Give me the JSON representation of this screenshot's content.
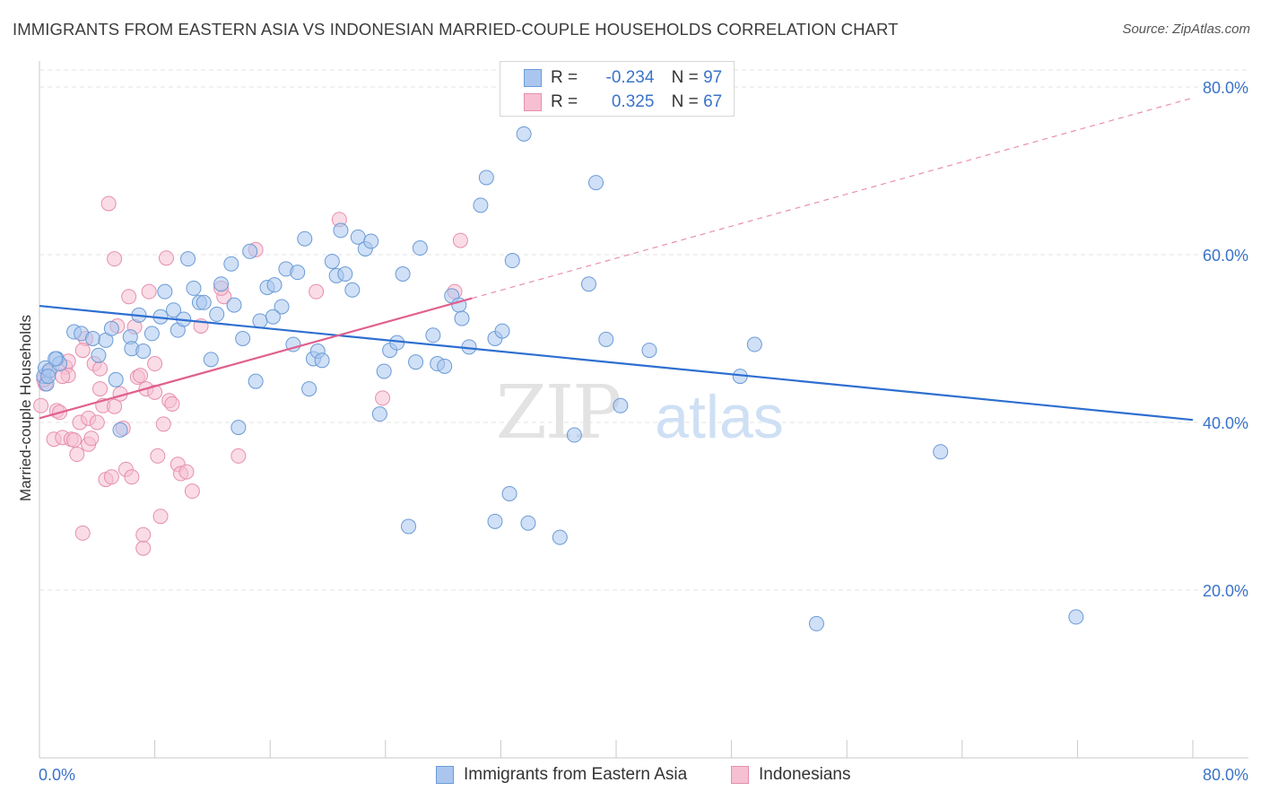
{
  "title": "IMMIGRANTS FROM EASTERN ASIA VS INDONESIAN MARRIED-COUPLE HOUSEHOLDS CORRELATION CHART",
  "source": "Source: ZipAtlas.com",
  "watermark": {
    "zip": "ZIP",
    "atlas": "atlas"
  },
  "colors": {
    "blue_fill": "#aac6ee",
    "blue_stroke": "#6b9bd6",
    "blue_line": "#2e6fd0",
    "pink_fill": "#f6c0d2",
    "pink_stroke": "#e68fae",
    "pink_line": "#e0608e",
    "axis_label": "#3a73c8",
    "grid": "#e3e3e3"
  },
  "legend_top": {
    "rows": [
      {
        "r_label": "R =",
        "r_value": "-0.234",
        "n_label": "N =",
        "n_value": "97",
        "series": "blue"
      },
      {
        "r_label": "R =",
        "r_value": "0.325",
        "n_label": "N =",
        "n_value": "67",
        "series": "pink"
      }
    ]
  },
  "legend_bottom": {
    "items": [
      {
        "label": "Immigrants from Eastern Asia",
        "series": "blue"
      },
      {
        "label": "Indonesians",
        "series": "pink"
      }
    ]
  },
  "chart_data": {
    "type": "scatter",
    "title": "IMMIGRANTS FROM EASTERN ASIA VS INDONESIAN MARRIED-COUPLE HOUSEHOLDS CORRELATION CHART",
    "xlabel": "",
    "ylabel": "Married-couple Households",
    "xlim": [
      0,
      80
    ],
    "ylim": [
      0,
      82
    ],
    "x_tick_labels": [
      "0.0%",
      "80.0%"
    ],
    "y_ticks": [
      20,
      40,
      60,
      80
    ],
    "y_tick_labels": [
      "20.0%",
      "40.0%",
      "60.0%",
      "80.0%"
    ],
    "grid": "horizontal dashed",
    "legend": "bottom-center",
    "series": [
      {
        "name": "Immigrants from Eastern Asia",
        "color": "#aac6ee",
        "trend": {
          "x": [
            0,
            80
          ],
          "y": [
            53.9,
            40.3
          ]
        },
        "points": [
          [
            0.3,
            45.5
          ],
          [
            0.4,
            46.5
          ],
          [
            0.5,
            44.6
          ],
          [
            0.7,
            46.2
          ],
          [
            1.2,
            47.6
          ],
          [
            1.4,
            47.0
          ],
          [
            2.4,
            50.8
          ],
          [
            2.9,
            50.6
          ],
          [
            3.7,
            50.0
          ],
          [
            4.1,
            48.0
          ],
          [
            4.6,
            49.8
          ],
          [
            5.0,
            51.2
          ],
          [
            5.3,
            45.1
          ],
          [
            5.6,
            39.1
          ],
          [
            6.3,
            50.2
          ],
          [
            6.4,
            48.8
          ],
          [
            6.9,
            52.8
          ],
          [
            7.2,
            48.5
          ],
          [
            7.8,
            50.6
          ],
          [
            8.4,
            52.6
          ],
          [
            8.7,
            55.6
          ],
          [
            9.3,
            53.4
          ],
          [
            9.6,
            51.0
          ],
          [
            10.0,
            52.3
          ],
          [
            10.3,
            59.5
          ],
          [
            10.7,
            56.0
          ],
          [
            11.1,
            54.3
          ],
          [
            11.4,
            54.3
          ],
          [
            11.9,
            47.5
          ],
          [
            12.3,
            52.9
          ],
          [
            12.6,
            56.5
          ],
          [
            13.3,
            58.9
          ],
          [
            13.5,
            54.0
          ],
          [
            13.8,
            39.4
          ],
          [
            14.1,
            50.0
          ],
          [
            14.6,
            60.4
          ],
          [
            15.0,
            44.9
          ],
          [
            15.3,
            52.1
          ],
          [
            15.8,
            56.1
          ],
          [
            16.3,
            56.4
          ],
          [
            16.8,
            53.8
          ],
          [
            17.1,
            58.3
          ],
          [
            17.6,
            49.3
          ],
          [
            17.9,
            57.9
          ],
          [
            18.4,
            61.9
          ],
          [
            18.7,
            44.0
          ],
          [
            19.0,
            47.6
          ],
          [
            19.3,
            48.5
          ],
          [
            19.6,
            47.4
          ],
          [
            20.3,
            59.2
          ],
          [
            20.6,
            57.5
          ],
          [
            20.9,
            62.9
          ],
          [
            21.2,
            57.7
          ],
          [
            21.7,
            55.8
          ],
          [
            22.1,
            62.1
          ],
          [
            22.6,
            60.7
          ],
          [
            23.0,
            61.6
          ],
          [
            23.6,
            41.0
          ],
          [
            23.9,
            46.1
          ],
          [
            24.3,
            48.6
          ],
          [
            24.8,
            49.5
          ],
          [
            25.2,
            57.7
          ],
          [
            25.6,
            27.6
          ],
          [
            26.1,
            47.2
          ],
          [
            26.4,
            60.8
          ],
          [
            27.3,
            50.4
          ],
          [
            27.6,
            47.0
          ],
          [
            28.1,
            46.7
          ],
          [
            28.6,
            55.1
          ],
          [
            29.1,
            54.0
          ],
          [
            29.3,
            52.4
          ],
          [
            29.8,
            49.0
          ],
          [
            30.6,
            65.9
          ],
          [
            31.0,
            69.2
          ],
          [
            31.6,
            50.0
          ],
          [
            32.1,
            50.9
          ],
          [
            31.6,
            28.2
          ],
          [
            32.6,
            31.5
          ],
          [
            32.8,
            59.3
          ],
          [
            33.6,
            74.4
          ],
          [
            33.9,
            28.0
          ],
          [
            34.8,
            78.5
          ],
          [
            36.1,
            26.3
          ],
          [
            37.1,
            38.5
          ],
          [
            38.1,
            56.5
          ],
          [
            38.6,
            68.6
          ],
          [
            39.3,
            49.9
          ],
          [
            40.3,
            42.0
          ],
          [
            42.3,
            48.6
          ],
          [
            48.6,
            45.5
          ],
          [
            49.6,
            49.3
          ],
          [
            53.9,
            16.0
          ],
          [
            62.5,
            36.5
          ],
          [
            71.9,
            16.8
          ],
          [
            0.6,
            45.5
          ],
          [
            1.1,
            47.6
          ],
          [
            16.2,
            52.6
          ]
        ]
      },
      {
        "name": "Indonesians",
        "color": "#f6c0d2",
        "trend": {
          "x": [
            0,
            30
          ],
          "y": [
            40.5,
            54.8
          ],
          "dashed_extension": {
            "x": [
              30,
              80
            ],
            "y": [
              54.8,
              78.7
            ]
          }
        },
        "points": [
          [
            0.1,
            42.0
          ],
          [
            0.4,
            44.6
          ],
          [
            0.6,
            46.0
          ],
          [
            1.0,
            38.0
          ],
          [
            1.2,
            41.4
          ],
          [
            1.4,
            41.2
          ],
          [
            1.6,
            38.2
          ],
          [
            1.8,
            46.6
          ],
          [
            2.0,
            45.6
          ],
          [
            2.2,
            38.0
          ],
          [
            2.4,
            37.9
          ],
          [
            2.6,
            36.2
          ],
          [
            2.8,
            40.0
          ],
          [
            3.0,
            26.8
          ],
          [
            3.2,
            50.0
          ],
          [
            3.4,
            40.5
          ],
          [
            3.4,
            37.4
          ],
          [
            3.6,
            38.1
          ],
          [
            3.8,
            47.0
          ],
          [
            4.0,
            40.0
          ],
          [
            4.2,
            44.0
          ],
          [
            4.4,
            42.0
          ],
          [
            4.6,
            33.2
          ],
          [
            4.8,
            66.1
          ],
          [
            5.0,
            33.5
          ],
          [
            5.2,
            59.5
          ],
          [
            5.4,
            51.5
          ],
          [
            5.6,
            43.4
          ],
          [
            5.8,
            39.3
          ],
          [
            6.0,
            34.4
          ],
          [
            6.2,
            55.0
          ],
          [
            6.4,
            33.5
          ],
          [
            6.6,
            51.4
          ],
          [
            6.8,
            45.4
          ],
          [
            7.0,
            45.6
          ],
          [
            7.2,
            25.0
          ],
          [
            7.2,
            26.6
          ],
          [
            7.4,
            44.0
          ],
          [
            7.6,
            55.6
          ],
          [
            8.0,
            47.0
          ],
          [
            8.2,
            36.0
          ],
          [
            8.4,
            28.8
          ],
          [
            8.6,
            39.8
          ],
          [
            8.8,
            59.6
          ],
          [
            9.0,
            42.6
          ],
          [
            9.2,
            42.2
          ],
          [
            9.6,
            35.0
          ],
          [
            9.8,
            33.9
          ],
          [
            10.2,
            34.1
          ],
          [
            10.6,
            31.8
          ],
          [
            12.8,
            55.0
          ],
          [
            13.8,
            36.0
          ],
          [
            15.0,
            60.6
          ],
          [
            19.2,
            55.6
          ],
          [
            20.8,
            64.2
          ],
          [
            23.8,
            42.9
          ],
          [
            28.8,
            55.6
          ],
          [
            29.2,
            61.7
          ],
          [
            0.3,
            45.1
          ],
          [
            1.6,
            45.5
          ],
          [
            2.0,
            47.3
          ],
          [
            3.0,
            48.6
          ],
          [
            4.2,
            46.4
          ],
          [
            5.2,
            41.9
          ],
          [
            8.0,
            43.6
          ],
          [
            11.2,
            51.5
          ],
          [
            12.6,
            56.0
          ]
        ]
      }
    ]
  },
  "y_axis_label": "Married-couple Households"
}
